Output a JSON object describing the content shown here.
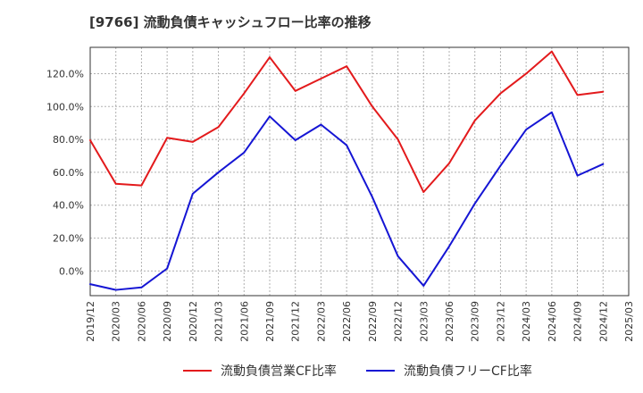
{
  "title": "[9766]  流動負債キャッシュフロー比率の推移",
  "chart_data": {
    "type": "line",
    "x": [
      "2019/12",
      "2020/03",
      "2020/06",
      "2020/09",
      "2020/12",
      "2021/03",
      "2021/06",
      "2021/09",
      "2021/12",
      "2022/03",
      "2022/06",
      "2022/09",
      "2022/12",
      "2023/03",
      "2023/06",
      "2023/09",
      "2023/12",
      "2024/03",
      "2024/06",
      "2024/09",
      "2024/12",
      "2025/03"
    ],
    "series": [
      {
        "name": "流動負債営業CF比率",
        "color": "#e31a1c",
        "values": [
          79.5,
          53.0,
          52.0,
          81.0,
          78.5,
          87.5,
          108.0,
          130.0,
          109.5,
          117.0,
          124.5,
          100.0,
          80.0,
          48.0,
          65.5,
          91.5,
          108.0,
          120.0,
          133.5,
          107.0,
          109.0,
          null
        ]
      },
      {
        "name": "流動負債フリーCF比率",
        "color": "#1515d4",
        "values": [
          -8.0,
          -11.5,
          -10.0,
          1.5,
          47.0,
          60.0,
          72.0,
          94.0,
          79.5,
          89.0,
          76.5,
          45.0,
          9.0,
          -9.0,
          15.0,
          41.0,
          64.0,
          86.0,
          96.5,
          58.0,
          65.0,
          null
        ]
      }
    ],
    "ylim": [
      -15,
      136
    ],
    "yticks": [
      0,
      20,
      40,
      60,
      80,
      100,
      120
    ],
    "ytick_labels": [
      "0.0%",
      "20.0%",
      "40.0%",
      "60.0%",
      "80.0%",
      "100.0%",
      "120.0%"
    ],
    "grid": true,
    "legend_position": "bottom"
  }
}
